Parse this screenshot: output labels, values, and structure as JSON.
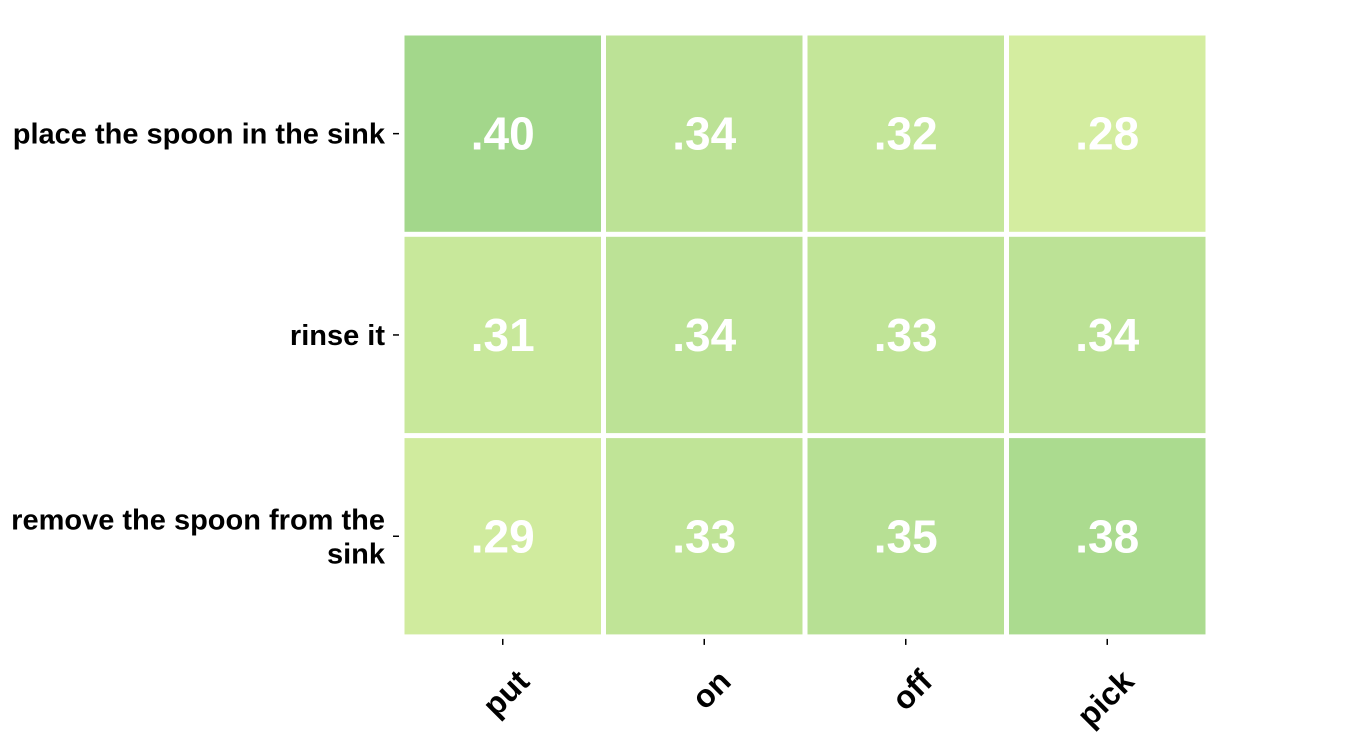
{
  "chart_data": {
    "type": "heatmap",
    "rows": [
      "place the spoon in the sink",
      "rinse it",
      "remove the spoon from the sink"
    ],
    "columns": [
      "put",
      "on",
      "off",
      "pick"
    ],
    "values": [
      [
        0.4,
        0.34,
        0.32,
        0.28
      ],
      [
        0.31,
        0.34,
        0.33,
        0.34
      ],
      [
        0.29,
        0.33,
        0.35,
        0.38
      ]
    ],
    "value_labels": [
      [
        ".40",
        ".34",
        ".32",
        ".28"
      ],
      [
        ".31",
        ".34",
        ".33",
        ".34"
      ],
      [
        ".29",
        ".33",
        ".35",
        ".38"
      ]
    ],
    "color_scale": {
      "low": "#d4eda0",
      "high": "#a3d78b"
    },
    "grid_color": "#ffffff",
    "value_text_color": "#ffffff",
    "title": "",
    "xlabel": "",
    "ylabel": ""
  }
}
